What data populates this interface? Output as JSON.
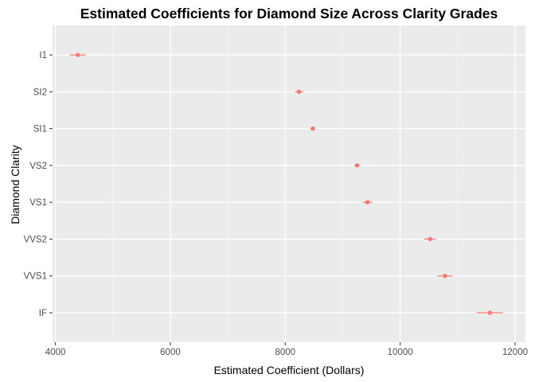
{
  "chart_data": {
    "type": "dot-errorbar",
    "title": "Estimated Coefficients for Diamond Size Across Clarity Grades",
    "xlabel": "Estimated Coefficient (Dollars)",
    "ylabel": "Diamond Clarity",
    "xlim": [
      3950,
      12180
    ],
    "x_ticks": [
      4000,
      6000,
      8000,
      10000,
      12000
    ],
    "x_tick_labels": [
      "4000",
      "6000",
      "8000",
      "10000",
      "12000"
    ],
    "categories_top_to_bottom": [
      "I1",
      "SI2",
      "SI1",
      "VS2",
      "VS1",
      "VVS2",
      "VVS1",
      "IF"
    ],
    "estimates": [
      4390,
      8240,
      8480,
      9250,
      9430,
      10520,
      10780,
      11560
    ],
    "ci_low": [
      4250,
      8170,
      8440,
      9200,
      9350,
      10420,
      10650,
      11330
    ],
    "ci_high": [
      4530,
      8310,
      8520,
      9300,
      9510,
      10620,
      10910,
      11790
    ],
    "point_color": "#f8766d",
    "panel_background": "#ebebeb",
    "grid": true,
    "legend": "none"
  }
}
